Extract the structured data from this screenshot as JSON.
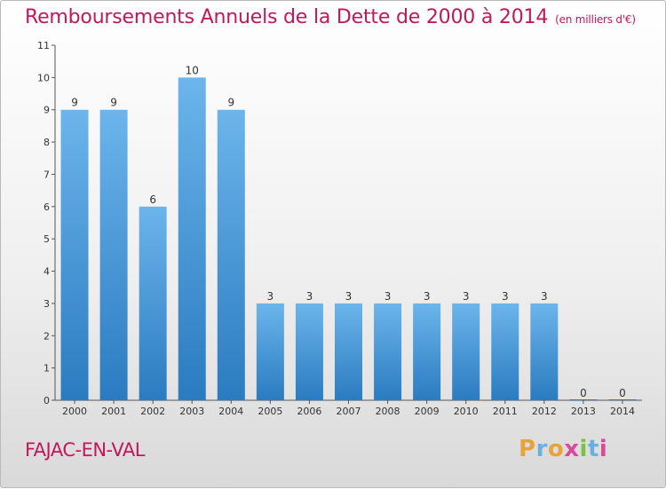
{
  "title": "Remboursements Annuels de la Dette de 2000 à 2014",
  "subtitle": "(en milliers d'€)",
  "commune": "FAJAC-EN-VAL",
  "logo": {
    "text": "Proxiti",
    "letters": [
      {
        "char": "P",
        "color": "#e8a33d"
      },
      {
        "char": "r",
        "color": "#6bb0e0"
      },
      {
        "char": "o",
        "color": "#e8a33d"
      },
      {
        "char": "x",
        "color": "#d84b9b"
      },
      {
        "char": "i",
        "color": "#7cc242"
      },
      {
        "char": "t",
        "color": "#6bb0e0"
      },
      {
        "char": "i",
        "color": "#d84b9b"
      }
    ]
  },
  "colors": {
    "bar_light": "#6cb5ec",
    "bar_dark": "#2a7bc0",
    "title": "#c2185b"
  },
  "chart_data": {
    "type": "bar",
    "categories": [
      "2000",
      "2001",
      "2002",
      "2003",
      "2004",
      "2005",
      "2006",
      "2007",
      "2008",
      "2009",
      "2010",
      "2011",
      "2012",
      "2013",
      "2014"
    ],
    "values": [
      9,
      9,
      6,
      10,
      9,
      3,
      3,
      3,
      3,
      3,
      3,
      3,
      3,
      0,
      0
    ],
    "yticks": [
      0,
      1,
      2,
      3,
      4,
      5,
      6,
      7,
      8,
      9,
      10,
      11
    ],
    "ylim": [
      0,
      11
    ],
    "xlabel": "",
    "ylabel": "",
    "grid": false
  }
}
